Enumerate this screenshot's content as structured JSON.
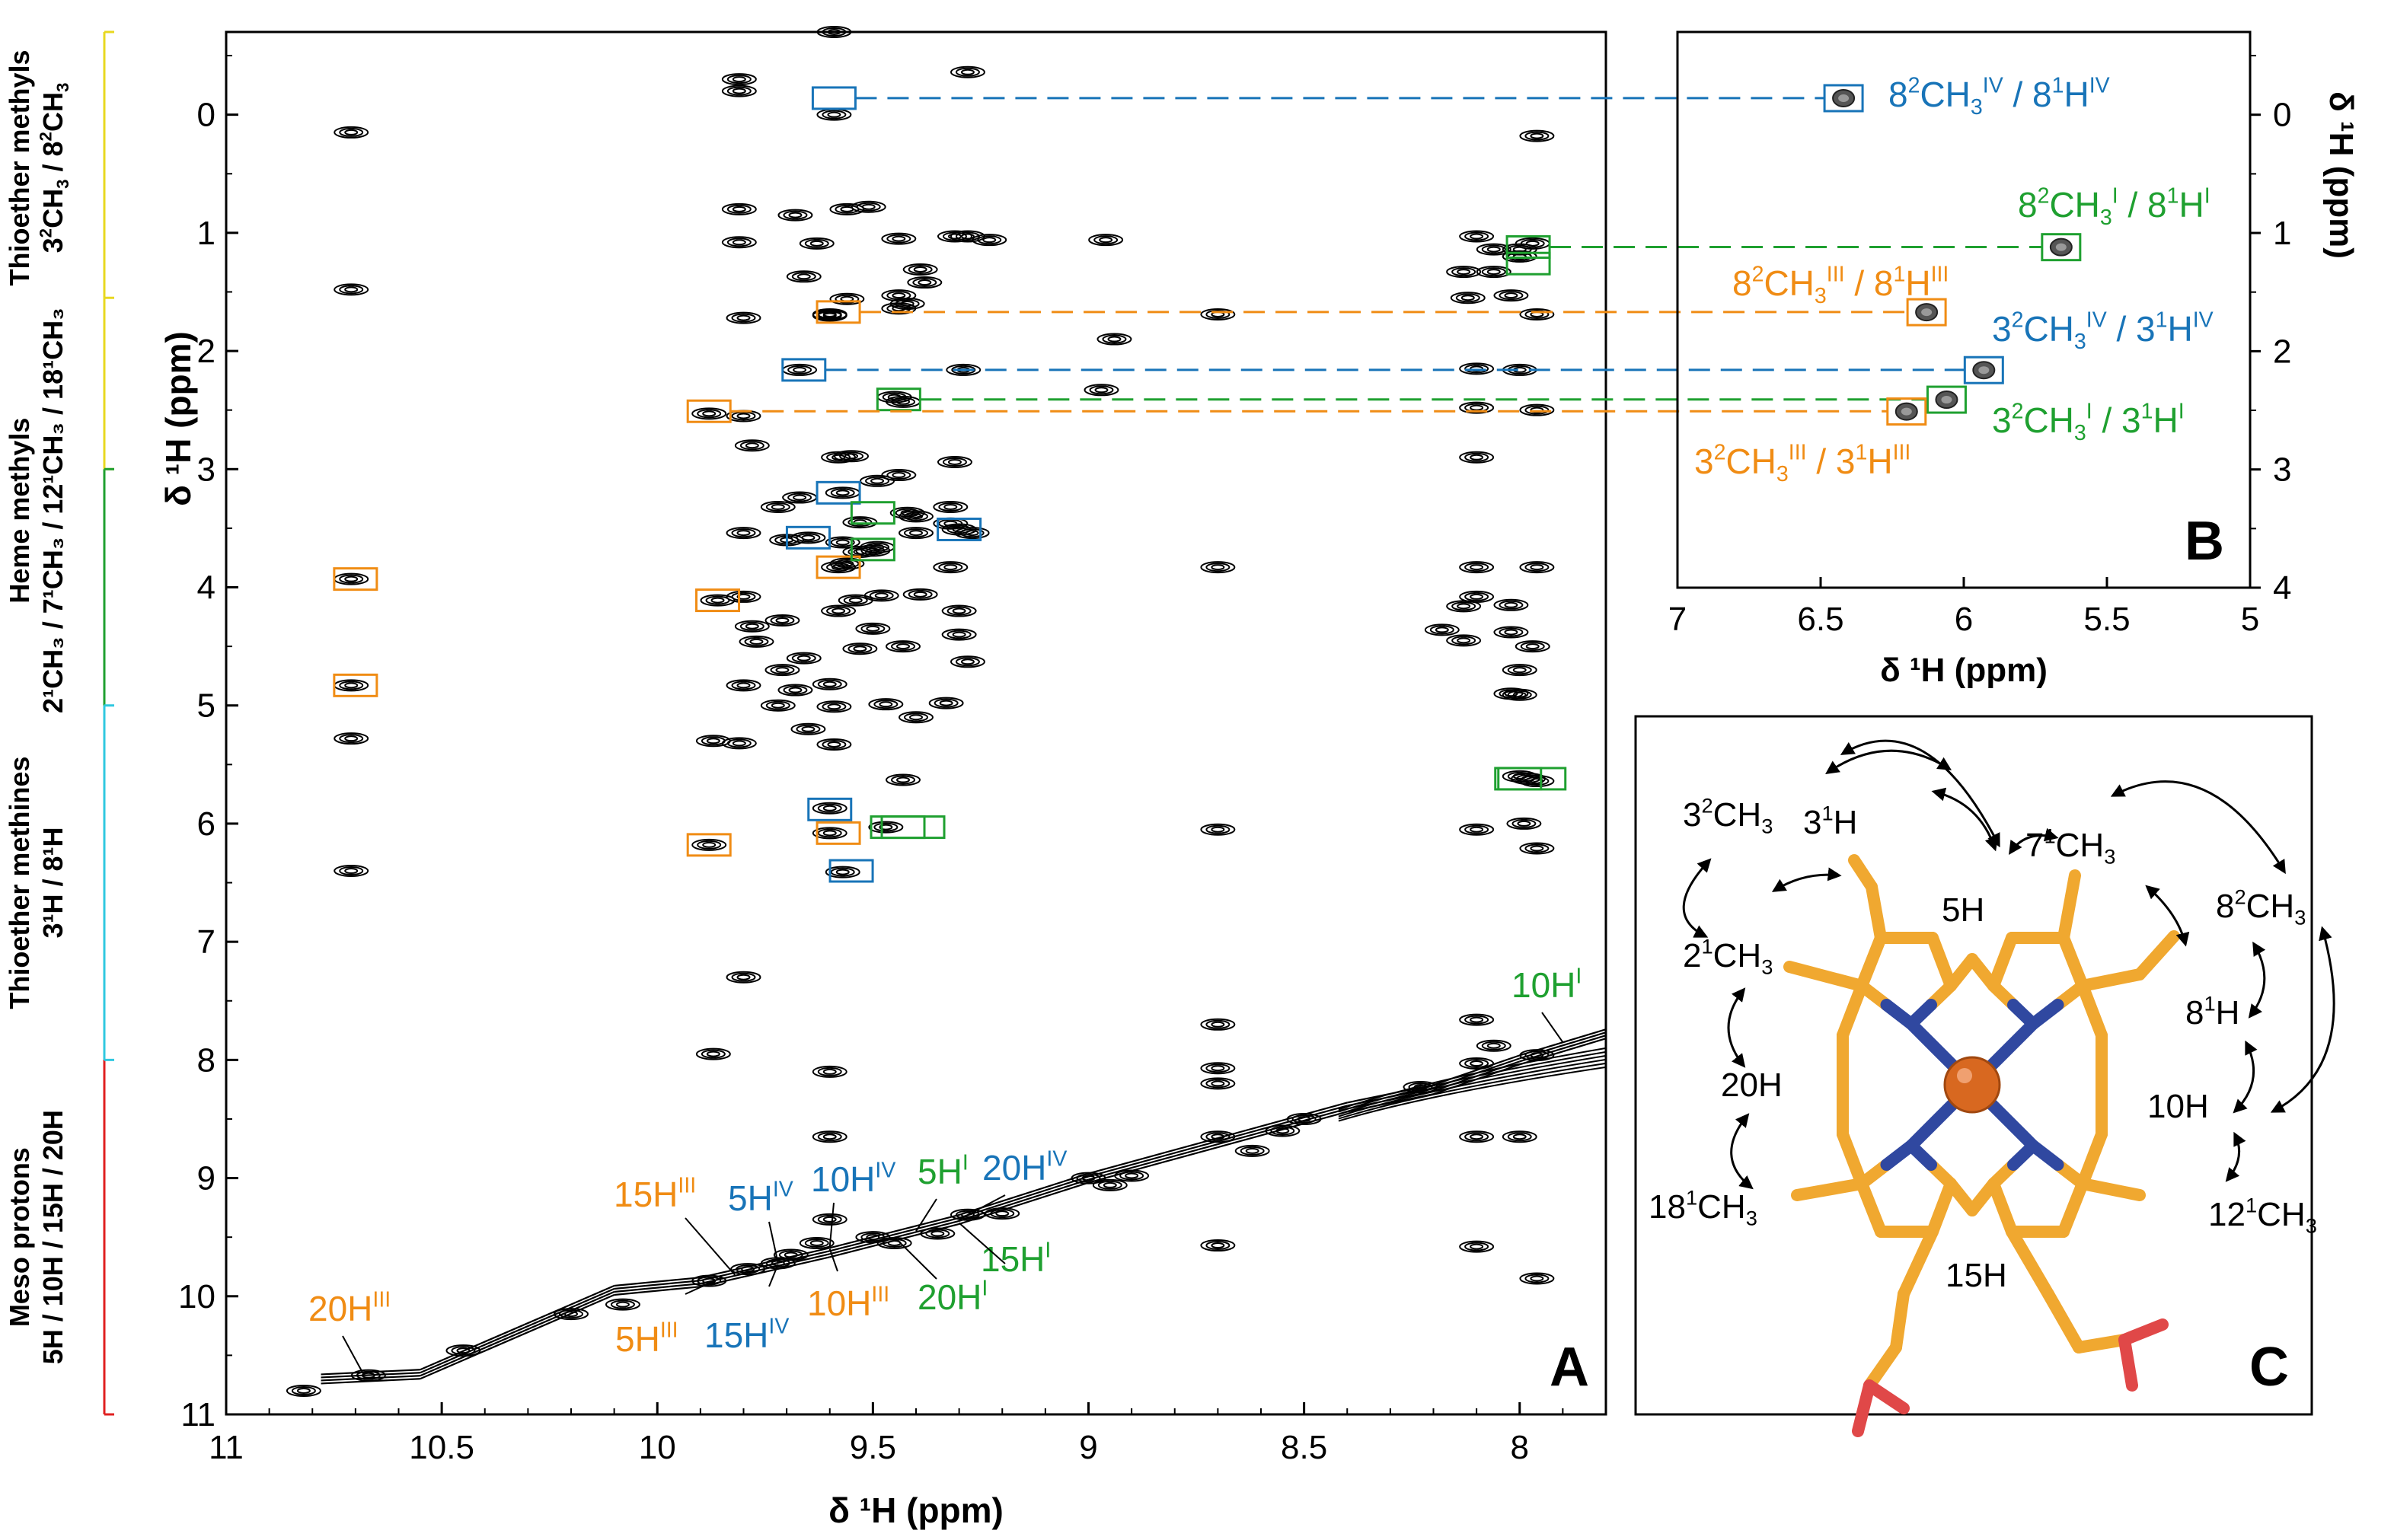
{
  "colors": {
    "orange": "#F08C14",
    "blue": "#1874B8",
    "green": "#1FA030",
    "black": "#000000",
    "red": "#E02020",
    "cyan": "#30C8E0",
    "yellow": "#E8D820",
    "heme": "#F0A830",
    "nitrogen": "#3048A0",
    "iron": "#D86820",
    "oxygen": "#E04848"
  },
  "chart_data": [
    {
      "type": "heatmap",
      "panel": "A",
      "title": "",
      "xlabel": "δ ¹H (ppm)",
      "ylabel": "δ ¹H (ppm)",
      "xlim": [
        11,
        7.8
      ],
      "ylim": [
        11,
        -0.7
      ],
      "xticks": [
        "11",
        "10.5",
        "10",
        "9.5",
        "9",
        "8.5",
        "8"
      ],
      "yticks": [
        "0",
        "1",
        "2",
        "3",
        "4",
        "5",
        "6",
        "7",
        "8",
        "9",
        "10",
        "11"
      ],
      "peaks": [
        [
          9.81,
          -0.3
        ],
        [
          9.59,
          -0.7
        ],
        [
          9.59,
          0
        ],
        [
          10.71,
          0.15
        ],
        [
          9.81,
          -0.2
        ],
        [
          9.28,
          -0.36
        ],
        [
          9.44,
          1.05
        ],
        [
          9.31,
          1.03
        ],
        [
          9.28,
          1.03
        ],
        [
          9.39,
          1.31
        ],
        [
          9.38,
          1.42
        ],
        [
          9.44,
          1.53
        ],
        [
          9.56,
          1.56
        ],
        [
          9.66,
          1.37
        ],
        [
          9.6,
          1.7
        ],
        [
          9.68,
          0.85
        ],
        [
          9.56,
          0.8
        ],
        [
          9.63,
          1.09
        ],
        [
          9.81,
          1.08
        ],
        [
          9.81,
          0.8
        ],
        [
          9.51,
          0.78
        ],
        [
          9.23,
          1.06
        ],
        [
          8.96,
          1.06
        ],
        [
          8.94,
          1.9
        ],
        [
          8.97,
          2.33
        ],
        [
          10.71,
          1.48
        ],
        [
          9.8,
          1.72
        ],
        [
          9.6,
          1.69
        ],
        [
          9.44,
          1.64
        ],
        [
          9.42,
          1.6
        ],
        [
          8.7,
          1.69
        ],
        [
          7.96,
          1.69
        ],
        [
          9.67,
          2.16
        ],
        [
          9.29,
          2.16
        ],
        [
          9.45,
          2.39
        ],
        [
          9.43,
          2.43
        ],
        [
          9.88,
          2.53
        ],
        [
          9.8,
          2.55
        ],
        [
          9.78,
          2.8
        ],
        [
          9.55,
          2.89
        ],
        [
          9.58,
          2.9
        ],
        [
          9.31,
          2.94
        ],
        [
          9.44,
          3.05
        ],
        [
          9.57,
          3.2
        ],
        [
          9.49,
          3.1
        ],
        [
          9.42,
          3.37
        ],
        [
          9.4,
          3.4
        ],
        [
          9.3,
          3.51
        ],
        [
          9.32,
          3.46
        ],
        [
          9.27,
          3.54
        ],
        [
          9.65,
          3.58
        ],
        [
          9.57,
          3.62
        ],
        [
          9.49,
          3.66
        ],
        [
          9.5,
          3.69
        ],
        [
          9.58,
          3.83
        ],
        [
          9.56,
          3.8
        ],
        [
          9.8,
          3.54
        ],
        [
          9.72,
          3.32
        ],
        [
          9.67,
          3.24
        ],
        [
          9.7,
          3.6
        ],
        [
          9.53,
          3.45
        ],
        [
          9.53,
          3.7
        ],
        [
          9.4,
          3.54
        ],
        [
          9.32,
          3.32
        ],
        [
          9.39,
          4.06
        ],
        [
          9.48,
          4.07
        ],
        [
          9.54,
          4.11
        ],
        [
          9.8,
          4.08
        ],
        [
          9.86,
          4.11
        ],
        [
          9.78,
          4.33
        ],
        [
          9.77,
          4.46
        ],
        [
          9.71,
          4.28
        ],
        [
          9.66,
          4.6
        ],
        [
          9.71,
          4.7
        ],
        [
          9.53,
          4.52
        ],
        [
          9.32,
          3.83
        ],
        [
          9.3,
          4.2
        ],
        [
          9.3,
          4.4
        ],
        [
          9.28,
          4.63
        ],
        [
          9.43,
          4.5
        ],
        [
          9.5,
          4.35
        ],
        [
          9.58,
          4.2
        ],
        [
          9.68,
          4.87
        ],
        [
          9.8,
          4.83
        ],
        [
          9.72,
          5.0
        ],
        [
          9.59,
          5.01
        ],
        [
          9.47,
          4.99
        ],
        [
          9.33,
          4.98
        ],
        [
          9.6,
          4.82
        ],
        [
          9.4,
          5.1
        ],
        [
          9.65,
          5.2
        ],
        [
          9.87,
          5.3
        ],
        [
          9.81,
          5.32
        ],
        [
          9.59,
          5.33
        ],
        [
          9.43,
          5.63
        ],
        [
          9.47,
          6.03
        ],
        [
          9.6,
          6.08
        ],
        [
          9.57,
          6.41
        ],
        [
          9.6,
          5.87
        ],
        [
          9.88,
          6.18
        ],
        [
          9.8,
          7.3
        ],
        [
          10.71,
          6.4
        ],
        [
          10.71,
          5.28
        ],
        [
          10.71,
          4.83
        ],
        [
          10.71,
          3.93
        ],
        [
          8.7,
          3.83
        ],
        [
          8.1,
          3.83
        ],
        [
          7.96,
          3.83
        ],
        [
          8.1,
          4.08
        ],
        [
          8.13,
          4.16
        ],
        [
          8.18,
          4.36
        ],
        [
          8.13,
          4.45
        ],
        [
          8.02,
          4.38
        ],
        [
          8.02,
          4.15
        ],
        [
          8.0,
          4.7
        ],
        [
          7.97,
          4.5
        ],
        [
          8.0,
          5.6
        ],
        [
          7.99,
          6.0
        ],
        [
          8.1,
          6.05
        ],
        [
          8.7,
          6.05
        ],
        [
          7.96,
          6.21
        ],
        [
          9.87,
          7.95
        ],
        [
          9.6,
          8.1
        ],
        [
          8.7,
          7.7
        ],
        [
          8.7,
          8.07
        ],
        [
          8.7,
          8.2
        ],
        [
          8.1,
          7.66
        ],
        [
          8.06,
          7.88
        ],
        [
          8.1,
          8.03
        ],
        [
          8.0,
          8.65
        ],
        [
          8.1,
          8.65
        ],
        [
          8.7,
          8.65
        ],
        [
          9.6,
          8.65
        ],
        [
          8.7,
          9.57
        ],
        [
          8.1,
          9.58
        ],
        [
          9.63,
          9.55
        ],
        [
          9.6,
          9.35
        ],
        [
          9.5,
          9.5
        ],
        [
          9.45,
          9.55
        ],
        [
          9.35,
          9.47
        ],
        [
          9.28,
          9.31
        ],
        [
          9.2,
          9.3
        ],
        [
          9.0,
          9.0
        ],
        [
          8.9,
          8.98
        ],
        [
          8.95,
          9.06
        ],
        [
          8.62,
          8.77
        ],
        [
          8.55,
          8.6
        ],
        [
          8.5,
          8.5
        ],
        [
          8.23,
          8.23
        ],
        [
          7.96,
          7.96
        ],
        [
          7.96,
          9.85
        ],
        [
          10.2,
          10.15
        ],
        [
          10.08,
          10.07
        ],
        [
          10.45,
          10.46
        ],
        [
          10.82,
          10.8
        ],
        [
          10.67,
          10.67
        ],
        [
          9.88,
          9.87
        ],
        [
          9.79,
          9.77
        ],
        [
          9.72,
          9.72
        ],
        [
          9.69,
          9.65
        ],
        [
          8.1,
          2.15
        ],
        [
          8.0,
          2.16
        ],
        [
          8.12,
          1.55
        ],
        [
          8.02,
          1.53
        ],
        [
          8.1,
          1.03
        ],
        [
          8.13,
          1.33
        ],
        [
          8.06,
          1.14
        ],
        [
          8.0,
          1.14
        ],
        [
          8.0,
          1.2
        ],
        [
          7.97,
          1.09
        ],
        [
          7.96,
          0.18
        ],
        [
          8.0,
          1.2
        ],
        [
          8.06,
          1.33
        ],
        [
          7.96,
          2.5
        ],
        [
          8.1,
          2.48
        ],
        [
          8.1,
          2.9
        ],
        [
          8.02,
          4.9
        ],
        [
          8.0,
          4.91
        ],
        [
          7.96,
          5.64
        ],
        [
          7.98,
          5.62
        ]
      ],
      "diagonal_ppm": [
        [
          10.85,
          10.85
        ],
        [
          7.8,
          7.8
        ]
      ],
      "boxes": [
        {
          "color": "orange",
          "peaks": [
            [
              10.7,
              3.93
            ],
            [
              10.7,
              4.83
            ],
            [
              9.88,
              2.51
            ],
            [
              9.86,
              4.11
            ],
            [
              9.88,
              6.18
            ],
            [
              9.58,
              1.67
            ],
            [
              9.58,
              3.83
            ],
            [
              9.58,
              6.08
            ]
          ]
        },
        {
          "color": "blue",
          "peaks": [
            [
              9.59,
              -0.14
            ],
            [
              9.66,
              2.16
            ],
            [
              9.58,
              3.2
            ],
            [
              9.65,
              3.58
            ],
            [
              9.3,
              3.51
            ],
            [
              9.6,
              5.88
            ],
            [
              9.55,
              6.4
            ]
          ]
        },
        {
          "color": "green",
          "peaks": [
            [
              9.44,
              2.41
            ],
            [
              9.5,
              3.37
            ],
            [
              9.5,
              3.68
            ],
            [
              9.43,
              6.03
            ],
            [
              7.98,
              1.12
            ],
            [
              7.98,
              1.26
            ],
            [
              8.0,
              5.62
            ]
          ]
        }
      ],
      "labels": [
        {
          "text": "20H",
          "sup": "III",
          "color": "orange"
        },
        {
          "text": "15H",
          "sup": "III",
          "color": "orange"
        },
        {
          "text": "5H",
          "sup": "III",
          "color": "orange"
        },
        {
          "text": "5H",
          "sup": "IV",
          "color": "blue"
        },
        {
          "text": "15H",
          "sup": "IV",
          "color": "blue"
        },
        {
          "text": "10H",
          "sup": "IV",
          "color": "blue"
        },
        {
          "text": "10H",
          "sup": "III",
          "color": "orange"
        },
        {
          "text": "5H",
          "sup": "I",
          "color": "green"
        },
        {
          "text": "20H",
          "sup": "I",
          "color": "green"
        },
        {
          "text": "20H",
          "sup": "IV",
          "color": "blue"
        },
        {
          "text": "15H",
          "sup": "I",
          "color": "green"
        },
        {
          "text": "10H",
          "sup": "I",
          "color": "green"
        }
      ],
      "panel_label": "A"
    },
    {
      "type": "heatmap",
      "panel": "B",
      "xlabel": "δ ¹H (ppm)",
      "ylabel": "δ ¹H (ppm)",
      "xlim": [
        7,
        5
      ],
      "ylim": [
        4,
        -0.7
      ],
      "xticks": [
        "7",
        "6.5",
        "6",
        "5.5",
        "5"
      ],
      "yticks": [
        "0",
        "1",
        "2",
        "3",
        "4"
      ],
      "peaks": [
        {
          "x": 6.42,
          "y": -0.14,
          "color": "blue",
          "label": "8²CH₃ᴵⱽ / 8¹Hᴵⱽ"
        },
        {
          "x": 5.66,
          "y": 1.12,
          "color": "green",
          "label": "8²CH₃ᴵ / 8¹Hᴵ"
        },
        {
          "x": 6.13,
          "y": 1.67,
          "color": "orange",
          "label": "8²CH₃ᴵᴵᴵ / 8¹Hᴵᴵᴵ"
        },
        {
          "x": 5.93,
          "y": 2.16,
          "color": "blue",
          "label": "3²CH₃ᴵⱽ / 3¹Hᴵⱽ"
        },
        {
          "x": 6.06,
          "y": 2.41,
          "color": "green",
          "label": "3²CH₃ᴵ / 3¹Hᴵ"
        },
        {
          "x": 6.2,
          "y": 2.51,
          "color": "orange",
          "label": "3²CH₃ᴵᴵᴵ / 3¹Hᴵᴵᴵ"
        }
      ],
      "panel_label": "B"
    }
  ],
  "b_labels": {
    "l1": {
      "a": "8",
      "b": "2",
      "c": "CH",
      "d": "3",
      "e": "IV",
      "f": " / 8",
      "g": "1",
      "h": "H",
      "i": "IV"
    },
    "l2": {
      "a": "8",
      "b": "2",
      "c": "CH",
      "d": "3",
      "e": "I",
      "f": " / 8",
      "g": "1",
      "h": "H",
      "i": "I"
    },
    "l3": {
      "a": "8",
      "b": "2",
      "c": "CH",
      "d": "3",
      "e": "III",
      "f": " / 8",
      "g": "1",
      "h": "H",
      "i": "III"
    },
    "l4": {
      "a": "3",
      "b": "2",
      "c": "CH",
      "d": "3",
      "e": "IV",
      "f": " / 3",
      "g": "1",
      "h": "H",
      "i": "IV"
    },
    "l5": {
      "a": "3",
      "b": "2",
      "c": "CH",
      "d": "3",
      "e": "I",
      "f": " / 3",
      "g": "1",
      "h": "H",
      "i": "I"
    },
    "l6": {
      "a": "3",
      "b": "2",
      "c": "CH",
      "d": "3",
      "e": "III",
      "f": " / 3",
      "g": "1",
      "h": "H",
      "i": "III"
    }
  },
  "side_groups": [
    {
      "line1": "Thioether methyls",
      "line2a": "3",
      "line2b": "2",
      "line2c": "CH",
      "line2d": "3",
      "line2e": " / 8",
      "line2f": "2",
      "line2g": "CH",
      "line2h": "3",
      "color": "yellow"
    },
    {
      "line1": "Heme methyls",
      "line2": "2¹CH₃ / 7¹CH₃ / 12¹CH₃ / 18¹CH₃",
      "color": "green"
    },
    {
      "line1": "Thioether methines",
      "line2": "3¹H / 8¹H",
      "color": "cyan"
    },
    {
      "line1": "Meso protons",
      "line2": "5H / 10H / 15H / 20H",
      "color": "red"
    }
  ],
  "panel_c": {
    "label": "C",
    "atoms": [
      "3²CH₃",
      "3¹H",
      "5H",
      "7¹CH₃",
      "8²CH₃",
      "2¹CH₃",
      "8¹H",
      "20H",
      "10H",
      "18¹CH₃",
      "12¹CH₃",
      "15H"
    ]
  }
}
